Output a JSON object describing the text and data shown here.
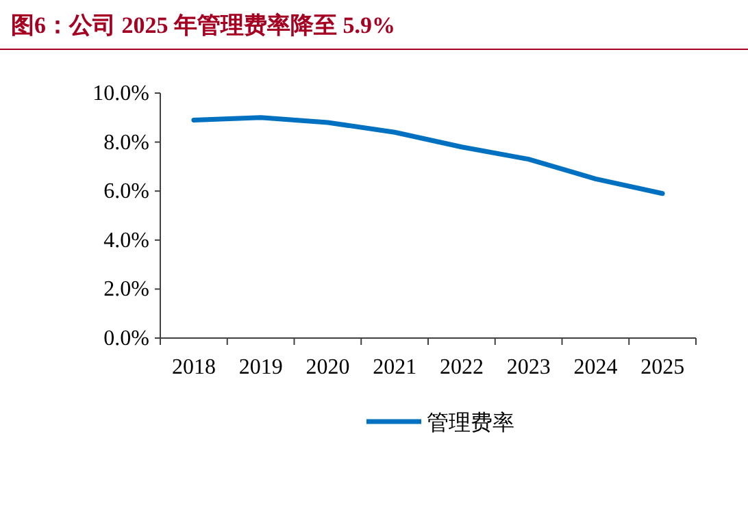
{
  "chart_data": {
    "type": "line",
    "title": "图6：公司 2025 年管理费率降至 5.9%",
    "categories": [
      "2018",
      "2019",
      "2020",
      "2021",
      "2022",
      "2023",
      "2024",
      "2025"
    ],
    "series": [
      {
        "name": "管理费率",
        "color": "#0070c0",
        "values": [
          8.9,
          9.0,
          8.8,
          8.4,
          7.8,
          7.3,
          6.5,
          5.9
        ]
      }
    ],
    "ylim": [
      0,
      10
    ],
    "yticks": [
      {
        "value": 0,
        "label": "0.0%"
      },
      {
        "value": 2,
        "label": "2.0%"
      },
      {
        "value": 4,
        "label": "4.0%"
      },
      {
        "value": 6,
        "label": "6.0%"
      },
      {
        "value": 8,
        "label": "8.0%"
      },
      {
        "value": 10,
        "label": "10.0%"
      }
    ],
    "legend": "bottom",
    "grid": false,
    "marker": "none",
    "line_style": "solid"
  }
}
